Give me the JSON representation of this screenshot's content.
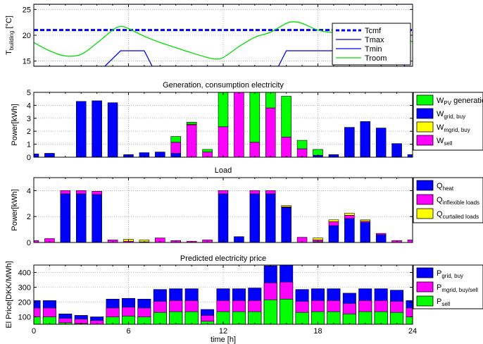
{
  "chart_data": [
    {
      "id": "temp",
      "type": "line",
      "title": "",
      "xlabel": "",
      "ylabel": "T_building [°C]",
      "ylabel_main": "T",
      "ylabel_sub": "building",
      "ylabel_tail": " [°C]",
      "xlim": [
        0,
        24
      ],
      "ylim": [
        14,
        26
      ],
      "yticks": [
        15,
        20,
        25
      ],
      "xticks": [
        0,
        6,
        12,
        18,
        24
      ],
      "legend": "top-right",
      "series": [
        {
          "name": "Tcmf",
          "color": "#0000ff",
          "style": "dashed",
          "x": [
            0,
            24
          ],
          "y": [
            21,
            21
          ]
        },
        {
          "name": "Tmax",
          "color": "#0000ff",
          "style": "solid",
          "x": [
            0,
            24
          ],
          "y": [
            26,
            26
          ]
        },
        {
          "name": "Tmin",
          "color": "#0000ff",
          "style": "solid",
          "x": [
            0,
            4.5,
            5.5,
            7,
            7.5,
            15.5,
            16,
            23,
            23.5,
            24
          ],
          "y": [
            14,
            14,
            17,
            17,
            14,
            14,
            17,
            17,
            14,
            14
          ]
        },
        {
          "name": "Troom",
          "color": "#00dd00",
          "style": "solid",
          "x": [
            0,
            1,
            2,
            3,
            4,
            5,
            5.5,
            6,
            7,
            8,
            9,
            10,
            11,
            11.5,
            12,
            13,
            14,
            15,
            16,
            16.5,
            17,
            18,
            19,
            20,
            21,
            22,
            23,
            24
          ],
          "y": [
            18.6,
            17,
            16,
            16.3,
            18.5,
            21,
            21.7,
            21.3,
            19.8,
            18.6,
            17.6,
            16.6,
            15.7,
            15.4,
            15.7,
            17.8,
            19.6,
            20.6,
            22.3,
            22.6,
            22.3,
            21,
            20.5,
            20.6,
            21.2,
            21.2,
            20.2,
            18.7
          ]
        }
      ]
    },
    {
      "id": "gen",
      "type": "bar",
      "stacked": true,
      "title": "Generation, consumption electricity",
      "xlabel": "",
      "ylabel": "Power[kWh]",
      "xlim": [
        0,
        24
      ],
      "ylim": [
        0,
        5
      ],
      "yticks": [
        0,
        1,
        2,
        3,
        4,
        5
      ],
      "xticks": [
        0,
        6,
        12,
        18,
        24
      ],
      "legend": "outside-right",
      "x": [
        0,
        1,
        2,
        3,
        4,
        5,
        6,
        7,
        8,
        9,
        10,
        11,
        12,
        13,
        14,
        15,
        16,
        17,
        18,
        19,
        20,
        21,
        22,
        23,
        24
      ],
      "series": [
        {
          "name": "W_grid, buy",
          "label_main": "W",
          "label_sub": "grid, buy",
          "color": "#0000ff",
          "values": [
            0.25,
            0.3,
            0,
            4.3,
            4.35,
            4.2,
            0.2,
            0.35,
            0.4,
            0.3,
            0,
            0,
            0,
            0,
            0,
            0,
            0,
            0,
            0.15,
            0.2,
            2.3,
            2.75,
            2.25,
            1.05,
            0.2
          ]
        },
        {
          "name": "W_sell",
          "label_main": "W",
          "label_sub": "sell",
          "color": "#ff00ff",
          "values": [
            0,
            0,
            0,
            0,
            0,
            0,
            0,
            0,
            0,
            0.85,
            2.5,
            0.4,
            2.35,
            5.0,
            1.15,
            3.8,
            1.55,
            0.65,
            0,
            0,
            0,
            0,
            0,
            0,
            0
          ]
        },
        {
          "name": "W_mgrid, buy",
          "label_main": "W",
          "label_sub": "mgrid, buy",
          "color": "#ffff00",
          "values": [
            0,
            0,
            0,
            0,
            0,
            0,
            0,
            0,
            0,
            0,
            0.05,
            0,
            0,
            0,
            0,
            0,
            0,
            0,
            0,
            0,
            0,
            0,
            0,
            0,
            0
          ]
        },
        {
          "name": "W_PV generation",
          "label_main": "W",
          "label_sub": "PV",
          "label_tail": " generation",
          "color": "#00ff00",
          "values": [
            0,
            0,
            0,
            0,
            0,
            0,
            0,
            0,
            0,
            0.45,
            0.15,
            0.2,
            2.65,
            0,
            3.85,
            1.2,
            3.15,
            0.65,
            0.45,
            0,
            0,
            0,
            0,
            0,
            0
          ]
        }
      ]
    },
    {
      "id": "load",
      "type": "bar",
      "stacked": true,
      "title": "Load",
      "xlabel": "",
      "ylabel": "Power[kWh]",
      "xlim": [
        0,
        24
      ],
      "ylim": [
        0,
        5
      ],
      "yticks": [
        0,
        2,
        4
      ],
      "xticks": [
        0,
        6,
        12,
        18,
        24
      ],
      "legend": "outside-right",
      "x": [
        0,
        1,
        2,
        3,
        4,
        5,
        6,
        7,
        8,
        9,
        10,
        11,
        12,
        13,
        14,
        15,
        16,
        17,
        18,
        19,
        20,
        21,
        22,
        23,
        24
      ],
      "series": [
        {
          "name": "Q_heat",
          "label_main": "Q",
          "label_sub": "heat",
          "color": "#0000ff",
          "values": [
            0,
            0,
            3.75,
            3.75,
            3.7,
            0,
            0,
            0,
            0,
            0,
            0,
            0,
            3.75,
            0.45,
            3.75,
            3.75,
            2.7,
            0,
            0.05,
            1.3,
            1.85,
            1.55,
            0.6,
            0,
            0
          ]
        },
        {
          "name": "Q_inflexible loads",
          "label_main": "Q",
          "label_sub": "inflexible loads",
          "color": "#ff00ff",
          "values": [
            0.15,
            0.3,
            0.25,
            0.25,
            0.25,
            0.2,
            0.1,
            0.05,
            0.35,
            0.15,
            0.1,
            0.2,
            0.25,
            0,
            0.25,
            0.25,
            0.05,
            0.4,
            0.15,
            0.3,
            0.25,
            0.1,
            0.1,
            0.15,
            0.2
          ]
        },
        {
          "name": "Q_curtailed loads",
          "label_main": "Q",
          "label_sub": "curtailed loads",
          "color": "#ffff00",
          "values": [
            0,
            0,
            0,
            0,
            0,
            0,
            0.15,
            0.15,
            0,
            0,
            0,
            0,
            0,
            0,
            0,
            0,
            0.1,
            0,
            0.15,
            0.15,
            0.15,
            0.1,
            0,
            0,
            0
          ]
        }
      ]
    },
    {
      "id": "price",
      "type": "bar",
      "overlapping": true,
      "title": "Predicted electricity price",
      "xlabel": "time [h]",
      "ylabel": "El Price[DKK/MWh]",
      "xlim": [
        0,
        24
      ],
      "ylim": [
        50,
        450
      ],
      "yticks": [
        100,
        200,
        300,
        400
      ],
      "xticks": [
        0,
        6,
        12,
        18,
        24
      ],
      "legend": "outside-right",
      "x": [
        0,
        1,
        2,
        3,
        4,
        5,
        6,
        7,
        8,
        9,
        10,
        11,
        12,
        13,
        14,
        15,
        16,
        17,
        18,
        19,
        20,
        21,
        22,
        23,
        24
      ],
      "series": [
        {
          "name": "P_grid, buy",
          "label_main": "P",
          "label_sub": "grid, buy",
          "color": "#0000ff",
          "values": [
            210,
            210,
            120,
            110,
            100,
            220,
            225,
            220,
            285,
            290,
            290,
            150,
            290,
            290,
            295,
            445,
            450,
            285,
            290,
            290,
            260,
            290,
            290,
            280,
            210
          ]
        },
        {
          "name": "P_mgrid, buy/sell",
          "label_main": "P",
          "label_sub": "mgrid, buy/sell",
          "color": "#ff00ff",
          "values": [
            160,
            160,
            90,
            85,
            75,
            160,
            165,
            160,
            205,
            210,
            210,
            110,
            210,
            210,
            210,
            330,
            335,
            205,
            210,
            210,
            190,
            210,
            210,
            205,
            160
          ]
        },
        {
          "name": "P_sell",
          "label_main": "P",
          "label_sub": "sell",
          "color": "#00ff00",
          "values": [
            100,
            100,
            60,
            55,
            50,
            100,
            105,
            100,
            130,
            135,
            135,
            70,
            135,
            135,
            135,
            215,
            220,
            130,
            135,
            135,
            120,
            135,
            135,
            130,
            100
          ]
        }
      ]
    }
  ]
}
